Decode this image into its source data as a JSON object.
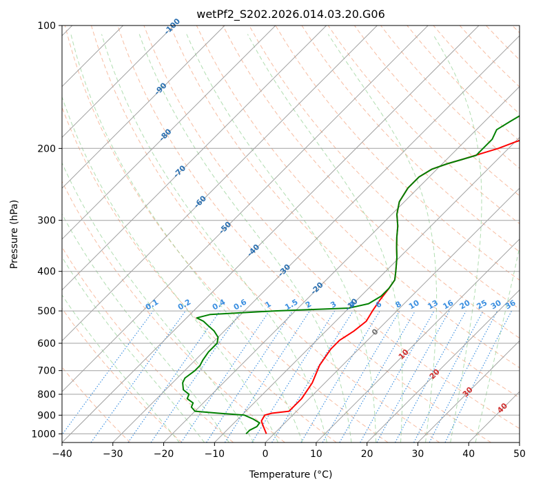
{
  "chart_data": {
    "type": "line",
    "title": "wetPf2_S202.2026.014.03.20.G06",
    "xlabel": "Temperature (°C)",
    "ylabel": "Pressure (hPa)",
    "xlim": [
      -40,
      50
    ],
    "ylim": [
      1050,
      100
    ],
    "y_scale": "log",
    "grid": true,
    "x_ticks": [
      -40,
      -30,
      -20,
      -10,
      0,
      10,
      20,
      30,
      40,
      50
    ],
    "y_ticks": [
      100,
      200,
      300,
      400,
      500,
      600,
      700,
      800,
      900,
      1000
    ],
    "series": [
      {
        "color": "#ff0000",
        "points": [
          [
            -1.5,
            1000
          ],
          [
            -3.5,
            960
          ],
          [
            -5.0,
            930
          ],
          [
            -5.5,
            900
          ],
          [
            -4.5,
            890
          ],
          [
            -1.5,
            880
          ],
          [
            -1.5,
            820
          ],
          [
            -2.5,
            750
          ],
          [
            -4.5,
            680
          ],
          [
            -5.5,
            620
          ],
          [
            -5.5,
            590
          ],
          [
            -4.5,
            560
          ],
          [
            -4.0,
            530
          ],
          [
            -4.8,
            500
          ],
          [
            -5.5,
            470
          ],
          [
            -6.0,
            440
          ],
          [
            -6.5,
            420
          ],
          [
            -8.0,
            400
          ],
          [
            -10.5,
            370
          ],
          [
            -12.5,
            350
          ],
          [
            -14.5,
            330
          ],
          [
            -16.5,
            310
          ],
          [
            -19,
            290
          ],
          [
            -21,
            270
          ],
          [
            -22,
            250
          ],
          [
            -22,
            235
          ],
          [
            -21,
            225
          ],
          [
            -19,
            218
          ],
          [
            -17,
            213
          ],
          [
            -14,
            205
          ],
          [
            -12,
            200
          ],
          [
            -10,
            193
          ],
          [
            -6,
            182
          ],
          [
            -2,
            172
          ],
          [
            0,
            165
          ],
          [
            1,
            160
          ],
          [
            2,
            155
          ],
          [
            4,
            148
          ],
          [
            6,
            140
          ],
          [
            8,
            135
          ],
          [
            11,
            128
          ],
          [
            13,
            120
          ],
          [
            15,
            115
          ],
          [
            17,
            110
          ],
          [
            19,
            105
          ],
          [
            21,
            100
          ]
        ]
      },
      {
        "color": "#008000",
        "points": [
          [
            -5.5,
            1000
          ],
          [
            -5.5,
            980
          ],
          [
            -4.8,
            960
          ],
          [
            -5.0,
            940
          ],
          [
            -7.0,
            920
          ],
          [
            -9.5,
            900
          ],
          [
            -15,
            890
          ],
          [
            -20,
            880
          ],
          [
            -21.5,
            860
          ],
          [
            -22,
            840
          ],
          [
            -24,
            820
          ],
          [
            -24.5,
            800
          ],
          [
            -26.5,
            780
          ],
          [
            -28,
            750
          ],
          [
            -28.5,
            730
          ],
          [
            -28,
            700
          ],
          [
            -28,
            680
          ],
          [
            -28.5,
            660
          ],
          [
            -29,
            630
          ],
          [
            -29,
            600
          ],
          [
            -30,
            580
          ],
          [
            -32,
            560
          ],
          [
            -34,
            545
          ],
          [
            -36,
            530
          ],
          [
            -38,
            520
          ],
          [
            -36,
            510
          ],
          [
            -24,
            500
          ],
          [
            -10,
            492
          ],
          [
            -7,
            480
          ],
          [
            -6,
            460
          ],
          [
            -6,
            440
          ],
          [
            -6.5,
            420
          ],
          [
            -8.0,
            400
          ],
          [
            -10.5,
            370
          ],
          [
            -12.5,
            350
          ],
          [
            -14.5,
            330
          ],
          [
            -16.5,
            310
          ],
          [
            -19,
            290
          ],
          [
            -21,
            270
          ],
          [
            -22,
            250
          ],
          [
            -22,
            235
          ],
          [
            -21,
            225
          ],
          [
            -19,
            218
          ],
          [
            -17,
            213
          ],
          [
            -15,
            208
          ],
          [
            -15,
            200
          ],
          [
            -15,
            190
          ],
          [
            -16,
            180
          ],
          [
            -15,
            172
          ],
          [
            -14,
            165
          ],
          [
            -13,
            155
          ],
          [
            -13,
            145
          ],
          [
            -11,
            135
          ],
          [
            -10,
            128
          ],
          [
            -8,
            120
          ],
          [
            -6,
            112
          ],
          [
            -4,
            105
          ],
          [
            -2,
            100
          ]
        ]
      }
    ],
    "isotherm_labels": [
      "-100",
      "-90",
      "-80",
      "-70",
      "-60",
      "-50",
      "-40",
      "-30",
      "-20",
      "-10",
      "0",
      "10",
      "20",
      "30",
      "40"
    ],
    "isotherm_label_values": [
      -100,
      -90,
      -80,
      -70,
      -60,
      -50,
      -40,
      -30,
      -20,
      -10,
      0,
      10,
      20,
      30,
      40
    ],
    "mixing_ratio_labels": [
      "0.1",
      "0.2",
      "0.4",
      "0.6",
      "1",
      "1.5",
      "2",
      "3",
      "4",
      "6",
      "8",
      "10",
      "13",
      "16",
      "20",
      "25",
      "30",
      "36"
    ],
    "mixing_ratio_values": [
      0.1,
      0.2,
      0.4,
      0.6,
      1,
      1.5,
      2,
      3,
      4,
      6,
      8,
      10,
      13,
      16,
      20,
      25,
      30,
      36
    ],
    "colors": {
      "temperature": "#ff0000",
      "dewpoint": "#008000",
      "isotherm": "#a0a0a0",
      "dry_adiabat": "#f4a582",
      "moist_adiabat": "#8fcf8f",
      "mixing_ratio": "#3b8fe0",
      "isotherm_cold_label": "#2a6fb0",
      "isotherm_warm_label": "#d03030",
      "isotherm_zero_label": "#707070"
    }
  }
}
